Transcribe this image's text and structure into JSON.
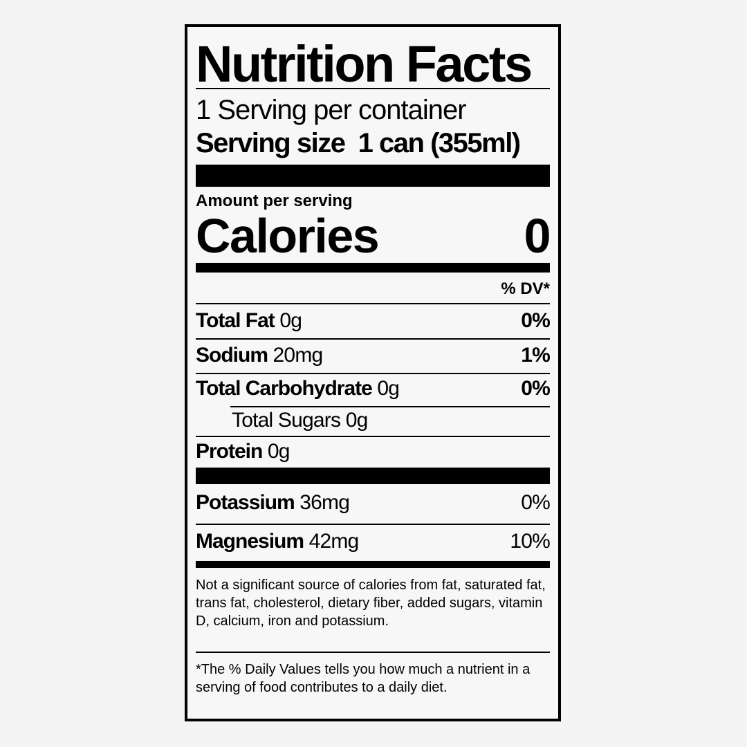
{
  "title": "Nutrition Facts",
  "servings_per_container": "1 Serving per container",
  "serving_size_label": "Serving size",
  "serving_size_value": "1 can (355ml)",
  "amount_per_serving": "Amount per serving",
  "calories_label": "Calories",
  "calories_value": "0",
  "dv_header": "% DV*",
  "nutrients": [
    {
      "name": "Total Fat",
      "amount": "0g",
      "dv": "0%"
    },
    {
      "name": "Sodium",
      "amount": "20mg",
      "dv": "1%"
    },
    {
      "name": "Total Carbohydrate",
      "amount": "0g",
      "dv": "0%"
    },
    {
      "name": "Total Sugars",
      "amount": "0g",
      "dv": ""
    },
    {
      "name": "Protein",
      "amount": "0g",
      "dv": ""
    },
    {
      "name": "Potassium",
      "amount": "36mg",
      "dv": "0%"
    },
    {
      "name": "Magnesium",
      "amount": "42mg",
      "dv": "10%"
    }
  ],
  "footnote_significant": "Not a significant source of calories from fat, saturated fat, trans fat, cholesterol, dietary fiber, added sugars, vitamin D, calcium, iron and potassium.",
  "footnote_dv": "*The % Daily Values tells you how much a nutrient in a serving of food contributes to a daily diet."
}
